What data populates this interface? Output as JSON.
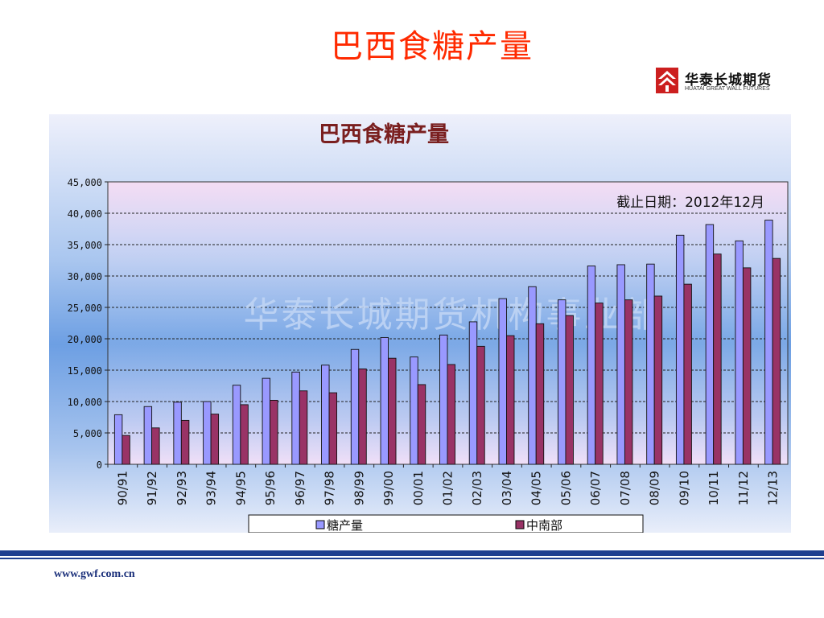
{
  "slide": {
    "title": "巴西食糖产量",
    "footer_url": "www.gwf.com.cn"
  },
  "logo": {
    "name_cn": "华泰长城期货",
    "name_en": "HUATAI GREAT WALL FUTURES",
    "color": "#cc1f1f"
  },
  "chart_data": {
    "type": "bar",
    "title": "巴西食糖产量",
    "annotation": "截止日期：2012年12月",
    "watermark": "华泰长城期货机构事业部",
    "xlabel": "",
    "ylabel": "",
    "ylim": [
      0,
      45000
    ],
    "yticks": [
      "0",
      "5,000",
      "10,000",
      "15,000",
      "20,000",
      "25,000",
      "30,000",
      "35,000",
      "40,000",
      "45,000"
    ],
    "grid": true,
    "legend_position": "bottom",
    "categories": [
      "90/91",
      "91/92",
      "92/93",
      "93/94",
      "94/95",
      "95/96",
      "96/97",
      "97/98",
      "98/99",
      "99/00",
      "00/01",
      "01/02",
      "02/03",
      "03/04",
      "04/05",
      "05/06",
      "06/07",
      "07/08",
      "08/09",
      "09/10",
      "10/11",
      "11/12",
      "12/13"
    ],
    "series": [
      {
        "name": "糖产量",
        "color": "#9999ff",
        "values": [
          7900,
          9200,
          9900,
          10000,
          12600,
          13700,
          14700,
          15800,
          18300,
          20200,
          17100,
          20600,
          22700,
          26400,
          28300,
          26200,
          31600,
          31800,
          31900,
          36500,
          38200,
          35600,
          38900
        ]
      },
      {
        "name": "中南部",
        "color": "#993366",
        "values": [
          4600,
          5800,
          7000,
          8000,
          9500,
          10200,
          11700,
          11400,
          15200,
          16900,
          12700,
          15900,
          18800,
          20500,
          22400,
          23700,
          25700,
          26200,
          26800,
          28700,
          33500,
          31300,
          32800
        ]
      }
    ],
    "colors": {
      "panel_top": "#e8ecfa",
      "panel_mid": "#79a8e6",
      "plot_top": "#f4dcf2",
      "plot_bottom": "#f2e2f8",
      "title_color": "#7a1f1f",
      "watermark_color": "#bdd2f2"
    }
  }
}
